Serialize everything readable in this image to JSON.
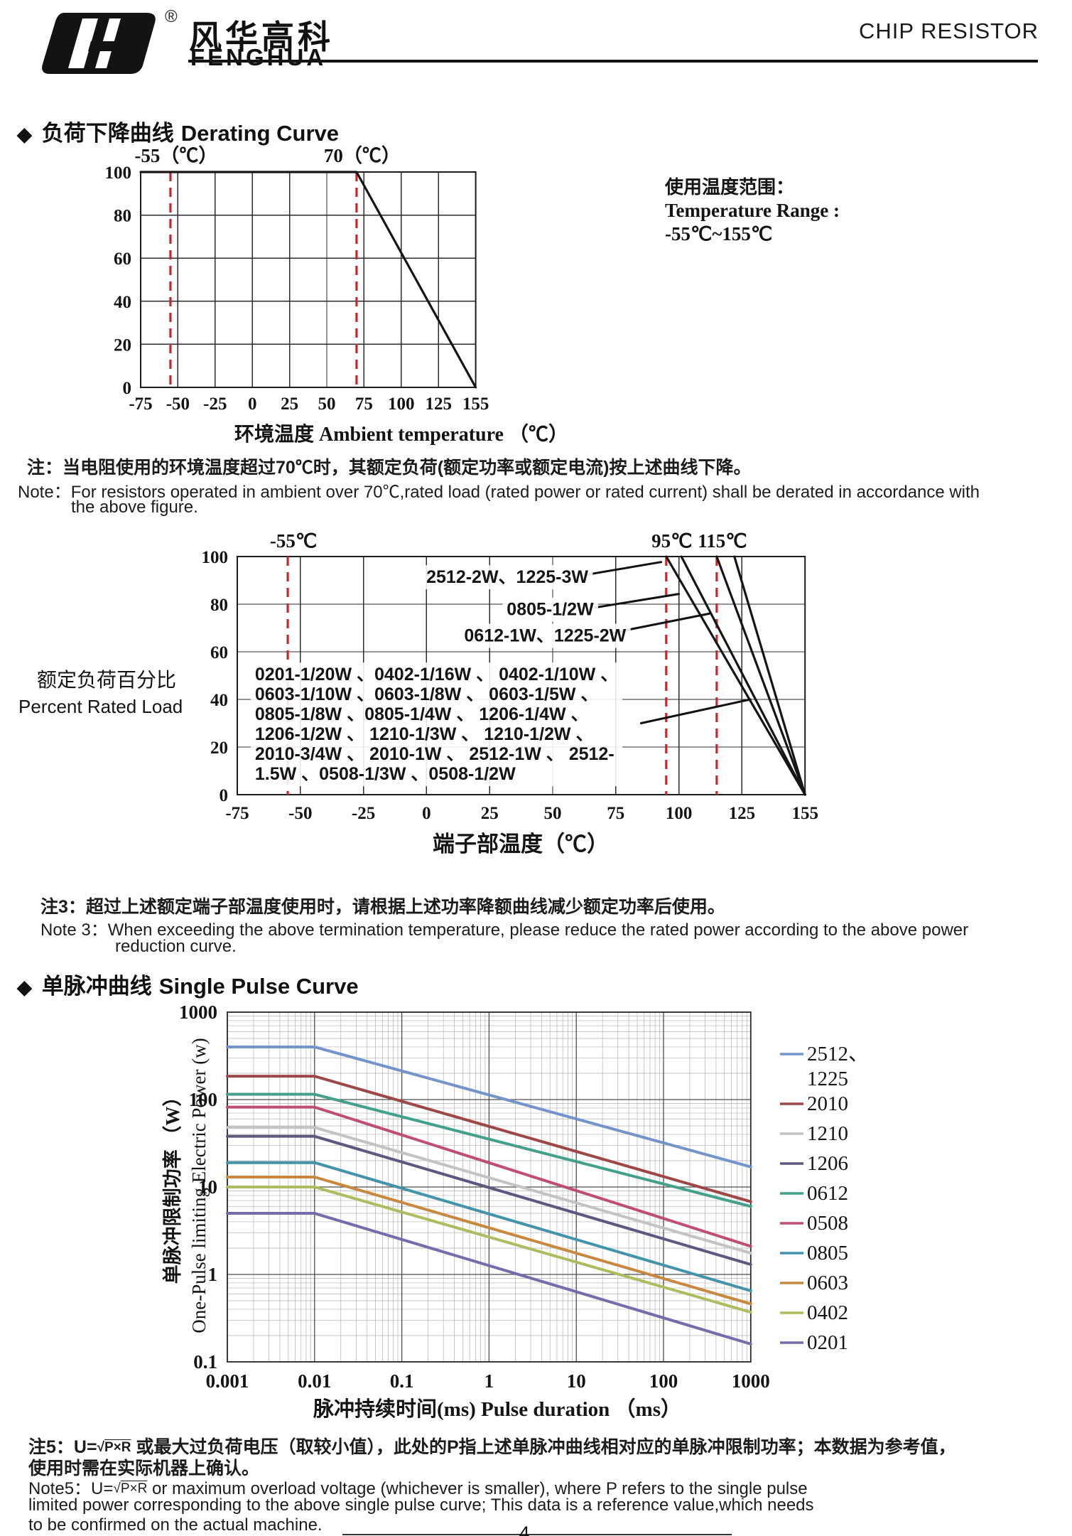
{
  "header": {
    "brand_cn": "风华高科",
    "brand_en": "FENGHUA",
    "reg": "®",
    "doc_title": "CHIP RESISTOR"
  },
  "sections": {
    "derating": {
      "bullet": "◆",
      "cn": "负荷下降曲线",
      "en": "Derating Curve"
    },
    "pulse": {
      "bullet": "◆",
      "cn": "单脉冲曲线",
      "en": "Single Pulse Curve"
    }
  },
  "notes": {
    "note1_cn": "注：当电阻使用的环境温度超过70℃时，其额定负荷(额定功率或额定电流)按上述曲线下降。",
    "note1_en1": "Note：For resistors operated in ambient over 70℃,rated load (rated power or rated current) shall be derated in accordance with",
    "note1_en2": "the above figure.",
    "note3_cn": "注3：超过上述额定端子部温度使用时，请根据上述功率降额曲线减少额定功率后使用。",
    "note3_en1": "Note 3：When exceeding the above termination temperature, please reduce the rated power according to the above power",
    "note3_en2": "reduction curve.",
    "note5_cn_prefix": "注5：U=",
    "note5_radical": "√",
    "note5_formula": "P×R",
    "note5_cn_suffix": "  或最大过负荷电压（取较小值），此处的P指上述单脉冲曲线相对应的单脉冲限制功率；本数据为参考值，",
    "note5_cn_line2": "使用时需在实际机器上确认。",
    "note5_en_prefix": "Note5：U=",
    "note5_en_suffix": "  or maximum overload voltage (whichever is smaller), where P refers to the single pulse",
    "note5_en_line2": "limited power corresponding to the above single pulse curve; This data is a reference value,which needs",
    "note5_en_line3": "to be confirmed on the actual machine."
  },
  "page_number": "4",
  "colors": {
    "ref_red": "#c8262c",
    "curve_black": "#151515"
  },
  "chart_data": [
    {
      "id": "derating-ambient",
      "type": "line",
      "x_tick_values": [
        -75,
        -50,
        -25,
        0,
        25,
        50,
        75,
        100,
        125,
        155
      ],
      "x_tick_labels": [
        "-75",
        "-50",
        "-25",
        "0",
        "25",
        "50",
        "75",
        "100",
        "125",
        "155"
      ],
      "y_ticks": [
        0,
        20,
        40,
        60,
        80,
        100
      ],
      "ylim": [
        0,
        100
      ],
      "xlabel": "环境温度 Ambient temperature （℃）",
      "grid": true,
      "ref_lines": [
        {
          "x": -55,
          "label": "-55（℃）"
        },
        {
          "x": 70,
          "label": "70（℃）"
        }
      ],
      "series": [
        {
          "name": "rated-load-derating",
          "color": "#151515",
          "points": [
            [
              -75,
              100
            ],
            [
              70,
              100
            ],
            [
              155,
              0
            ]
          ]
        }
      ],
      "side_note": [
        "使用温度范围：",
        "Temperature Range :",
        "-55℃~155℃"
      ]
    },
    {
      "id": "derating-terminal",
      "type": "line",
      "x_tick_values": [
        -75,
        -50,
        -25,
        0,
        25,
        50,
        75,
        100,
        125,
        155
      ],
      "x_tick_labels": [
        "-75",
        "-50",
        "-25",
        "0",
        "25",
        "50",
        "75",
        "100",
        "125",
        "155"
      ],
      "y_ticks": [
        0,
        20,
        40,
        60,
        80,
        100
      ],
      "ylim": [
        0,
        100
      ],
      "xlabel": "端子部温度（℃）",
      "ylabel_cn": "额定负荷百分比",
      "ylabel_en": "Percent Rated Load",
      "grid": true,
      "ref_lines": [
        {
          "x": -55,
          "label": "-55℃"
        },
        {
          "x": 95,
          "label": "95℃"
        },
        {
          "x": 115,
          "label": "115℃"
        }
      ],
      "series": [
        {
          "name": "2512-2W、1225-3W",
          "color": "#151515",
          "points": [
            [
              95,
              100
            ],
            [
              155,
              0
            ]
          ]
        },
        {
          "name": "0805-1/2W",
          "color": "#151515",
          "points": [
            [
              101,
              100
            ],
            [
              155,
              0
            ]
          ]
        },
        {
          "name": "0612-1W、1225-2W",
          "color": "#151515",
          "points": [
            [
              115,
              100
            ],
            [
              155,
              0
            ]
          ]
        },
        {
          "name": "all-other-sizes",
          "color": "#151515",
          "points": [
            [
              122,
              100
            ],
            [
              155,
              0
            ]
          ]
        }
      ],
      "annotations": [
        {
          "text": "2512-2W、1225-3W",
          "x": 32,
          "y": 91.6,
          "leader": [
            [
              63,
              92.3
            ],
            [
              93,
              97.7
            ]
          ]
        },
        {
          "text": "0805-1/2W",
          "x": 49,
          "y": 78,
          "leader": [
            [
              67,
              78.6
            ],
            [
              100,
              84.3
            ]
          ]
        },
        {
          "text": "0612-1W、1225-2W",
          "x": 47,
          "y": 67,
          "leader": [
            [
              73,
              67.8
            ],
            [
              112,
              76
            ]
          ]
        },
        {
          "lines": [
            "0201-1/20W 、0402-1/16W 、 0402-1/10W 、",
            "0603-1/10W 、0603-1/8W   、 0603-1/5W  、",
            "0805-1/8W  、0805-1/4W   、 1206-1/4W  、",
            "1206-1/2W 、 1210-1/3W   、 1210-1/2W  、",
            "2010-3/4W 、 2010-1W 、 2512-1W 、 2512-",
            "1.5W  、0508-1/3W 、0508-1/2W"
          ],
          "x": -68,
          "y": 50.7,
          "align": "left",
          "leader": [
            [
              85,
              30
            ],
            [
              129,
              40
            ]
          ]
        }
      ]
    },
    {
      "id": "single-pulse",
      "type": "line",
      "x_scale": "log",
      "y_scale": "log",
      "x_ticks": [
        0.001,
        0.01,
        0.1,
        1,
        10,
        100,
        1000
      ],
      "x_tick_labels": [
        "0.001",
        "0.01",
        "0.1",
        "1",
        "10",
        "100",
        "1000"
      ],
      "y_ticks": [
        0.1,
        1,
        10,
        100,
        1000
      ],
      "y_tick_labels": [
        "0.1",
        "1",
        "10",
        "100",
        "1000"
      ],
      "xlim": [
        0.001,
        1000
      ],
      "ylim": [
        0.1,
        1000
      ],
      "xlabel": "脉冲持续时间(ms) Pulse duration （ms）",
      "ylabel_cn": "单脉冲限制功率 （W）",
      "ylabel_en": "One-Pulse limiting Electric Power (w)",
      "grid": true,
      "legend_position": "right",
      "series": [
        {
          "name": "2512、1225",
          "legend_lines": [
            "2512、",
            "1225"
          ],
          "color": "#7294ca",
          "points": [
            [
              0.001,
              400
            ],
            [
              0.01,
              400
            ],
            [
              1000,
              17
            ]
          ]
        },
        {
          "name": "2010",
          "legend_lines": [
            "2010"
          ],
          "color": "#9e4747",
          "points": [
            [
              0.001,
              185
            ],
            [
              0.01,
              185
            ],
            [
              1000,
              6.8
            ]
          ]
        },
        {
          "name": "1210",
          "legend_lines": [
            "1210"
          ],
          "color": "#c3c3c3",
          "points": [
            [
              0.001,
              48
            ],
            [
              0.01,
              48
            ],
            [
              1000,
              1.75
            ]
          ]
        },
        {
          "name": "1206",
          "legend_lines": [
            "1206"
          ],
          "color": "#5c5880",
          "points": [
            [
              0.001,
              38
            ],
            [
              0.01,
              38
            ],
            [
              1000,
              1.3
            ]
          ]
        },
        {
          "name": "0612",
          "legend_lines": [
            "0612"
          ],
          "color": "#43a08d",
          "points": [
            [
              0.001,
              115
            ],
            [
              0.01,
              115
            ],
            [
              1000,
              6.0
            ]
          ]
        },
        {
          "name": "0508",
          "legend_lines": [
            "0508"
          ],
          "color": "#bf4d75",
          "points": [
            [
              0.001,
              82
            ],
            [
              0.01,
              82
            ],
            [
              1000,
              2.1
            ]
          ]
        },
        {
          "name": "0805",
          "legend_lines": [
            "0805"
          ],
          "color": "#4394ab",
          "points": [
            [
              0.001,
              19
            ],
            [
              0.01,
              19
            ],
            [
              1000,
              0.65
            ]
          ]
        },
        {
          "name": "0603",
          "legend_lines": [
            "0603"
          ],
          "color": "#c8883f",
          "points": [
            [
              0.001,
              13
            ],
            [
              0.01,
              13
            ],
            [
              1000,
              0.46
            ]
          ]
        },
        {
          "name": "0402",
          "legend_lines": [
            "0402"
          ],
          "color": "#aebc60",
          "points": [
            [
              0.001,
              10
            ],
            [
              0.01,
              10
            ],
            [
              1000,
              0.37
            ]
          ]
        },
        {
          "name": "0201",
          "legend_lines": [
            "0201"
          ],
          "color": "#776cab",
          "points": [
            [
              0.001,
              5
            ],
            [
              0.01,
              5
            ],
            [
              1000,
              0.16
            ]
          ]
        }
      ]
    }
  ]
}
